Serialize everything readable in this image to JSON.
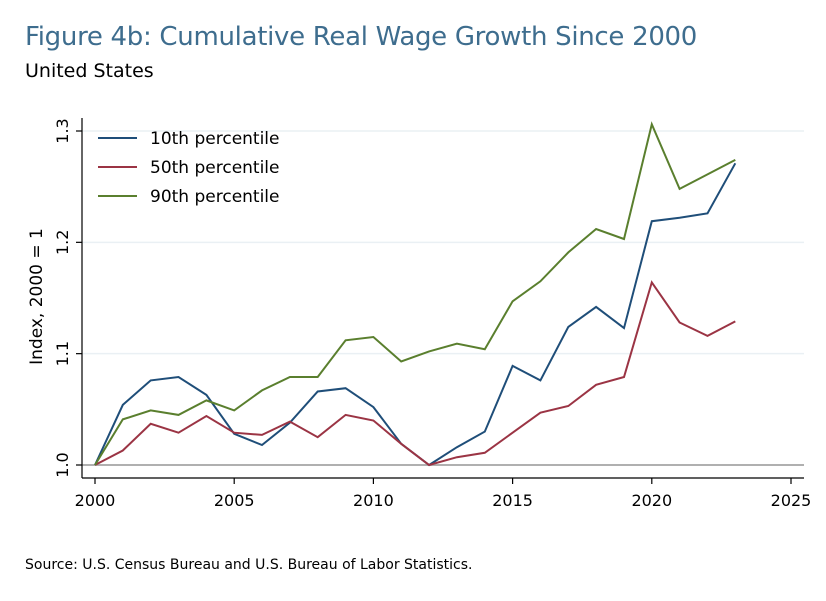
{
  "header": {
    "title": "Figure 4b: Cumulative Real Wage Growth Since 2000",
    "subtitle": "United States"
  },
  "footer": {
    "source": "Source: U.S. Census Bureau and U.S. Bureau of Labor Statistics."
  },
  "chart_data": {
    "type": "line",
    "title": "Figure 4b: Cumulative Real Wage Growth Since 2000",
    "subtitle": "United States",
    "xlabel": "",
    "ylabel": "Index, 2000 = 1",
    "xlim": [
      2000,
      2025
    ],
    "ylim": [
      1.0,
      1.3
    ],
    "xticks": [
      2000,
      2005,
      2010,
      2015,
      2020,
      2025
    ],
    "xtick_labels": [
      "2000",
      "2005",
      "2010",
      "2015",
      "2020",
      "2025"
    ],
    "yticks": [
      1.0,
      1.1,
      1.2,
      1.3
    ],
    "ytick_labels": [
      "1.0",
      "1.1",
      "1.2",
      "1.3"
    ],
    "grid": "horizontal",
    "legend_position": "top-left",
    "x": [
      2000,
      2001,
      2002,
      2003,
      2004,
      2005,
      2006,
      2007,
      2008,
      2009,
      2010,
      2011,
      2012,
      2013,
      2014,
      2015,
      2016,
      2017,
      2018,
      2019,
      2020,
      2021,
      2022,
      2023
    ],
    "series": [
      {
        "name": "10th percentile",
        "color": "#1f4e79",
        "values": [
          1.0,
          1.054,
          1.076,
          1.079,
          1.063,
          1.028,
          1.018,
          1.038,
          1.066,
          1.069,
          1.052,
          1.019,
          1.0,
          1.016,
          1.03,
          1.089,
          1.076,
          1.124,
          1.142,
          1.123,
          1.219,
          1.222,
          1.226,
          1.271
        ]
      },
      {
        "name": "50th percentile",
        "color": "#9b3444",
        "values": [
          1.0,
          1.013,
          1.037,
          1.029,
          1.044,
          1.029,
          1.027,
          1.039,
          1.025,
          1.045,
          1.04,
          1.019,
          1.0,
          1.007,
          1.011,
          1.029,
          1.047,
          1.053,
          1.072,
          1.079,
          1.164,
          1.128,
          1.116,
          1.129
        ]
      },
      {
        "name": "90th percentile",
        "color": "#5a7f2e",
        "values": [
          1.0,
          1.041,
          1.049,
          1.045,
          1.058,
          1.049,
          1.067,
          1.079,
          1.079,
          1.112,
          1.115,
          1.093,
          1.102,
          1.109,
          1.104,
          1.147,
          1.165,
          1.191,
          1.212,
          1.203,
          1.306,
          1.248,
          1.261,
          1.274
        ]
      }
    ]
  }
}
